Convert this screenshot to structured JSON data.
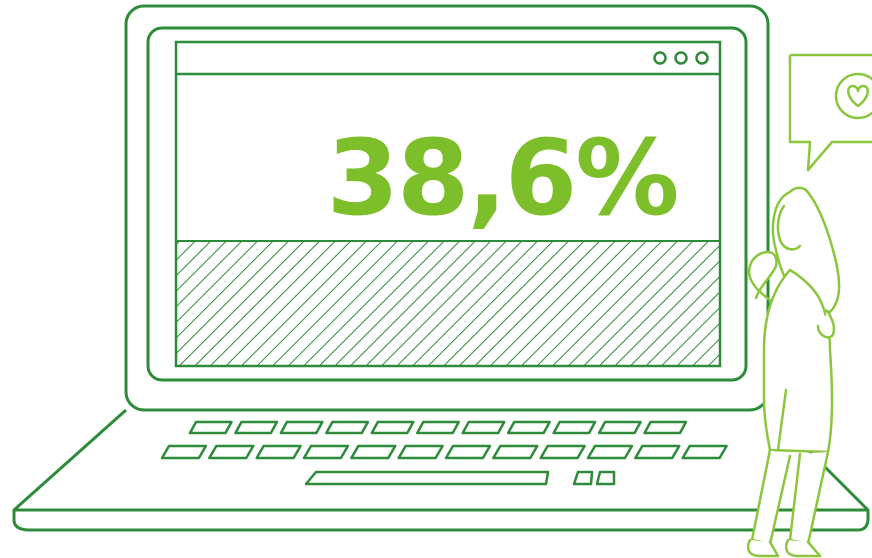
{
  "headline": {
    "value_text": "38,6%",
    "value": 38.6
  },
  "colors": {
    "laptop_outline": "#2e8b3a",
    "accent": "#7cbf2a",
    "person_outline": "#8cc63f",
    "background": "#ffffff"
  },
  "icons": {
    "window_controls": "three-dots-icon",
    "speech_bubble": "speech-bubble-icon",
    "heart": "heart-icon"
  }
}
